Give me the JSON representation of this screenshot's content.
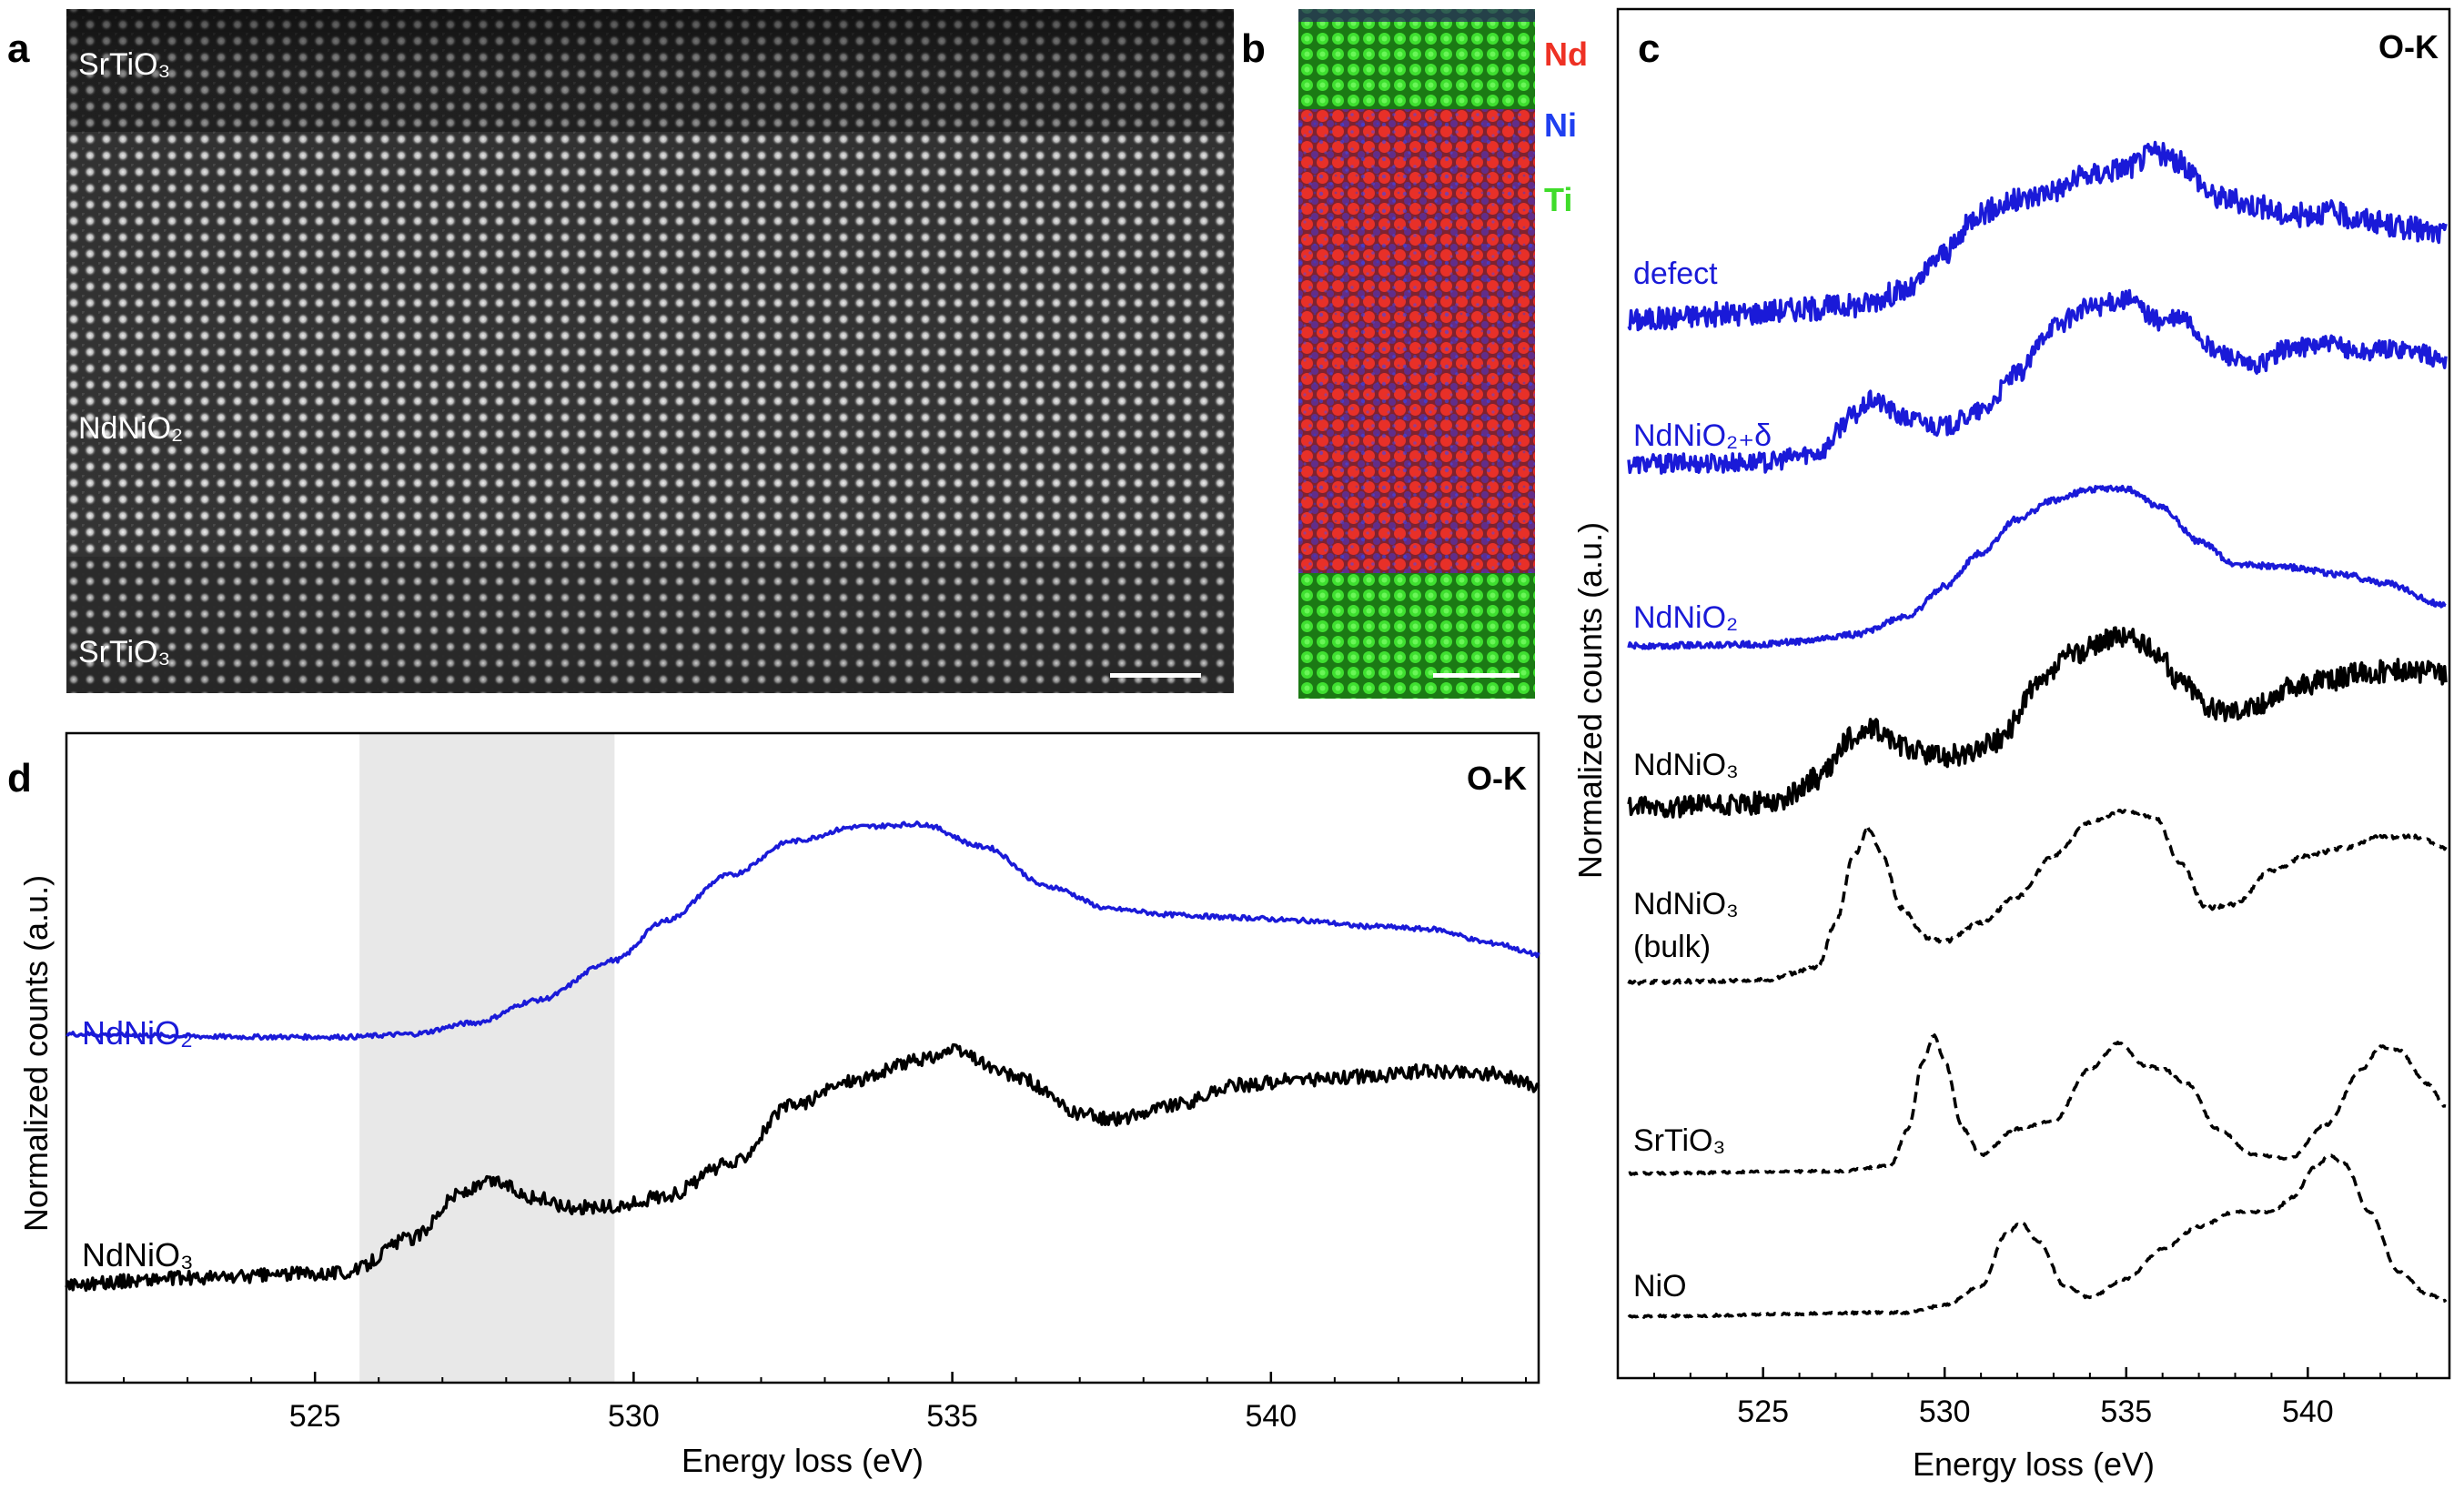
{
  "panels": {
    "a": {
      "letter": "a",
      "labels": {
        "top": "SrTiO₃",
        "middle": "NdNiO₂",
        "bottom": "SrTiO₃"
      }
    },
    "b": {
      "letter": "b",
      "legend": [
        {
          "label": "Nd",
          "color": "#ee3124"
        },
        {
          "label": "Ni",
          "color": "#1f3ff0"
        },
        {
          "label": "Ti",
          "color": "#3fdc2a"
        }
      ]
    },
    "c": {
      "letter": "c",
      "edge": "O-K"
    },
    "d": {
      "letter": "d",
      "edge": "O-K"
    }
  },
  "chart_data": [
    {
      "panel": "c",
      "type": "line",
      "title": "O-K",
      "xlabel": "Energy loss (eV)",
      "ylabel": "Normalized counts (a.u.)",
      "xlim": [
        521.3,
        543.8
      ],
      "xticks": [
        525,
        530,
        535,
        540
      ],
      "ylim": [
        0,
        100
      ],
      "series": [
        {
          "name": "defect",
          "color": "#1a1ad8",
          "style": "solid",
          "noise": 1.6,
          "offset": 80,
          "x": [
            521.3,
            524,
            526,
            527.5,
            529,
            530,
            531,
            532,
            533,
            534,
            535,
            535.8,
            536.5,
            537.5,
            538.5,
            539.5,
            540.5,
            541.5,
            542.5,
            543.8
          ],
          "y": [
            0,
            0.8,
            1.5,
            2,
            4,
            9,
            14.5,
            16,
            17.5,
            19.5,
            20.5,
            22.5,
            21,
            16.5,
            15.5,
            14,
            14.5,
            13.5,
            12.5,
            11.5
          ]
        },
        {
          "name": "NdNiO₂₊δ",
          "color": "#1a1ad8",
          "style": "solid",
          "noise": 1.3,
          "offset": 61,
          "x": [
            521.3,
            525,
            526.5,
            527.5,
            528,
            529,
            530,
            531,
            532,
            533,
            534,
            535,
            536,
            536.5,
            537.5,
            538.5,
            539.5,
            540.5,
            541.5,
            542.5,
            543.8
          ],
          "y": [
            0,
            0.2,
            1.5,
            6.5,
            8.5,
            6,
            5,
            7,
            12,
            18.5,
            21,
            22,
            19,
            19.5,
            15,
            13,
            15.5,
            16,
            15,
            15.5,
            14
          ]
        },
        {
          "name": "NdNiO₂",
          "color": "#1a1ad8",
          "style": "solid",
          "noise": 0.4,
          "offset": 42,
          "x": [
            521.3,
            525,
            526,
            527.5,
            529,
            530,
            531,
            532,
            533,
            534,
            535,
            536,
            537,
            538,
            539.5,
            541,
            542,
            543.8
          ],
          "y": [
            0,
            0.2,
            0.6,
            1.5,
            4,
            8,
            12.5,
            17,
            19.5,
            21,
            21,
            18.5,
            14,
            11,
            10.5,
            9.5,
            8.5,
            5.5
          ]
        },
        {
          "name": "NdNiO₃",
          "color": "#000000",
          "style": "solid",
          "noise": 1.5,
          "offset": 23,
          "x": [
            521.3,
            524,
            525.5,
            526.5,
            527.5,
            528,
            529,
            529.8,
            530.5,
            531.5,
            532.5,
            533.5,
            534.5,
            535,
            535.8,
            536.5,
            537.5,
            538.5,
            539.5,
            540.5,
            541.5,
            542.5,
            543.8
          ],
          "y": [
            0,
            0.2,
            1,
            4,
            9.5,
            10.5,
            8,
            7,
            7,
            9,
            16,
            20.5,
            22.5,
            23,
            21,
            17,
            13,
            13.5,
            16,
            17,
            18,
            18.5,
            18
          ]
        },
        {
          "name": "NdNiO₃ (bulk)",
          "color": "#000000",
          "style": "dashed",
          "noise": 0.25,
          "offset": 4,
          "x": [
            521.3,
            525,
            526.5,
            527,
            527.5,
            527.9,
            528.3,
            528.8,
            529.5,
            530,
            531,
            532,
            533,
            534,
            535,
            535.8,
            536.5,
            537.2,
            538,
            539,
            540,
            541,
            542,
            543,
            543.8
          ],
          "y": [
            0,
            0.3,
            2,
            8,
            17,
            20.5,
            17,
            10,
            6,
            5.5,
            8,
            11.5,
            17,
            21.5,
            23,
            22,
            16,
            10,
            10.5,
            15,
            17,
            18,
            19.5,
            19.5,
            18
          ]
        },
        {
          "name": "SrTiO₃",
          "color": "#000000",
          "style": "dashed",
          "noise": 0.15,
          "offset": -14,
          "x": [
            521.3,
            527,
            528.5,
            529,
            529.4,
            529.7,
            530,
            530.5,
            531,
            532,
            533,
            534,
            534.8,
            535.5,
            536,
            536.7,
            537.5,
            538.5,
            539.5,
            540.5,
            541.5,
            542,
            542.5,
            543.3,
            543.8
          ],
          "y": [
            0,
            0.3,
            1,
            6,
            15,
            18.5,
            15,
            6,
            2.5,
            6,
            7,
            14,
            17.5,
            14.5,
            14,
            12,
            6,
            2.5,
            2,
            6.5,
            14,
            17,
            16.5,
            12,
            9
          ]
        },
        {
          "name": "NiO",
          "color": "#000000",
          "style": "dashed",
          "noise": 0.15,
          "offset": -32,
          "x": [
            521.3,
            529,
            530,
            531,
            531.7,
            532.1,
            532.6,
            533.3,
            534,
            535,
            536,
            537,
            538,
            539,
            539.6,
            540.2,
            540.6,
            541,
            541.7,
            542.5,
            543.3,
            543.8
          ],
          "y": [
            0,
            0.5,
            1.5,
            4,
            11,
            12.5,
            10,
            4,
            2.5,
            5,
            9,
            12,
            14,
            14,
            16,
            20,
            21.5,
            20.5,
            14,
            6,
            3,
            2
          ]
        }
      ]
    },
    {
      "panel": "d",
      "type": "line",
      "title": "O-K",
      "xlabel": "Energy loss (eV)",
      "ylabel": "Normalized counts (a.u.)",
      "xlim": [
        521.1,
        544.2
      ],
      "xticks": [
        525,
        530,
        535,
        540
      ],
      "ylim": [
        0,
        100
      ],
      "highlight": [
        525.7,
        529.7
      ],
      "series": [
        {
          "name": "NdNiO₂",
          "color": "#1a1ad8",
          "style": "solid",
          "noise": 0.4,
          "offset": 0,
          "x": [
            521.1,
            524,
            525.5,
            526.5,
            527.5,
            528.5,
            529.7,
            530.5,
            531.5,
            532.5,
            533.5,
            534.5,
            535.5,
            536.5,
            537.5,
            538.5,
            539.5,
            540.5,
            541.5,
            542.5,
            543.5,
            544.2
          ],
          "y": [
            55,
            54.5,
            54.5,
            55,
            57,
            61,
            68,
            75,
            83,
            89,
            91.5,
            92,
            88,
            81,
            77,
            76,
            75.5,
            75,
            74,
            73.5,
            71,
            69
          ]
        },
        {
          "name": "NdNiO₃",
          "color": "#000000",
          "style": "solid",
          "noise": 1.2,
          "offset": 0,
          "x": [
            521.1,
            523,
            525.5,
            526.5,
            527.3,
            527.8,
            528.5,
            529,
            529.7,
            530.5,
            531.5,
            532.5,
            533.5,
            534.5,
            535,
            536,
            537,
            537.5,
            538.5,
            539.5,
            540.5,
            541.5,
            542.5,
            543.5,
            544.2
          ],
          "y": [
            11,
            12,
            13,
            19,
            27,
            29,
            26,
            24.5,
            24.5,
            26.5,
            32,
            42.5,
            47,
            50.5,
            52,
            47.5,
            41,
            40,
            42.5,
            46,
            47,
            47.5,
            48.5,
            48,
            46
          ]
        }
      ]
    }
  ]
}
